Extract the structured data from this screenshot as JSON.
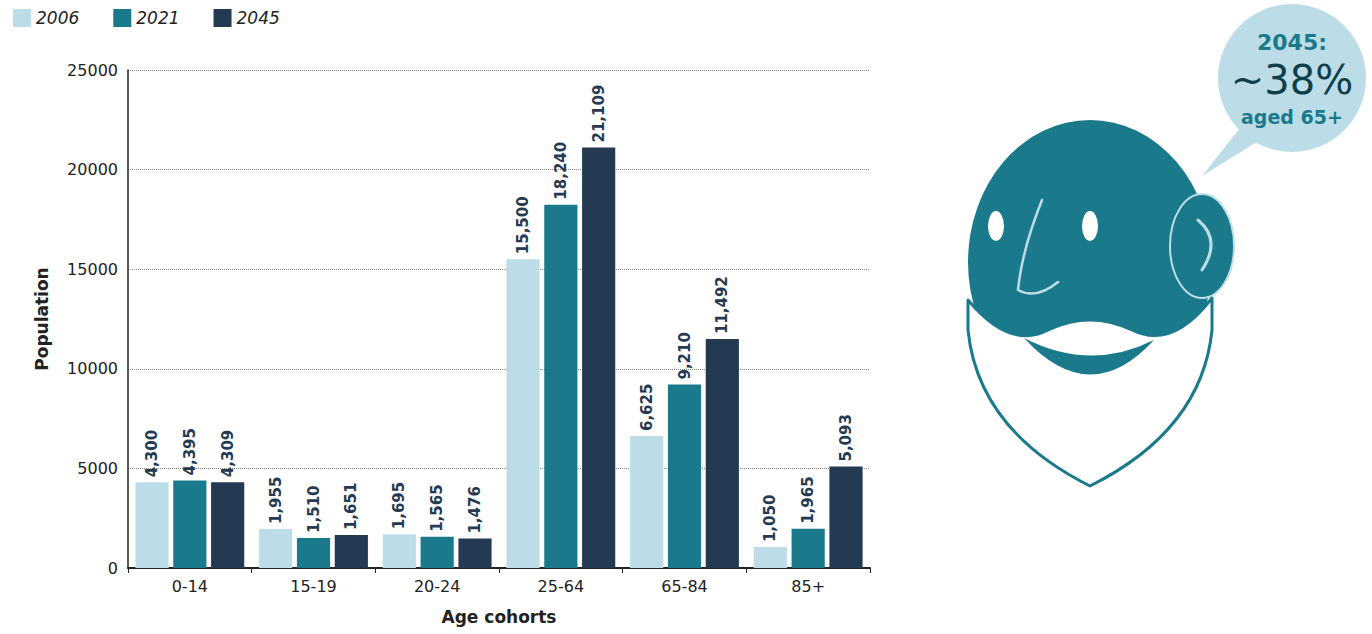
{
  "chart_data": {
    "type": "bar",
    "x_label": "Age cohorts",
    "y_label": "Population",
    "categories": [
      "0-14",
      "15-19",
      "20-24",
      "25-64",
      "65-84",
      "85+"
    ],
    "series": [
      {
        "name": "2006",
        "color": "#bcdde7",
        "values": [
          4300,
          1955,
          1695,
          15500,
          6625,
          1050
        ],
        "value_labels": [
          "4,300",
          "1,955",
          "1,695",
          "15,500",
          "6,625",
          "1,050"
        ]
      },
      {
        "name": "2021",
        "color": "#1a7a8c",
        "values": [
          4395,
          1510,
          1565,
          18240,
          9210,
          1965
        ],
        "value_labels": [
          "4,395",
          "1,510",
          "1,565",
          "18,240",
          "9,210",
          "1,965"
        ]
      },
      {
        "name": "2045",
        "color": "#243a52",
        "values": [
          4309,
          1651,
          1476,
          21109,
          11492,
          5093
        ],
        "value_labels": [
          "4,309",
          "1,651",
          "1,476",
          "21,109",
          "11,492",
          "5,093"
        ]
      }
    ],
    "ylim": [
      0,
      25000
    ],
    "yticks": [
      0,
      5000,
      10000,
      15000,
      20000,
      25000
    ],
    "grid": true,
    "legend": "top-left",
    "data_labels": true,
    "annotations": [
      "2045:",
      "~38%",
      "aged 65+"
    ]
  }
}
